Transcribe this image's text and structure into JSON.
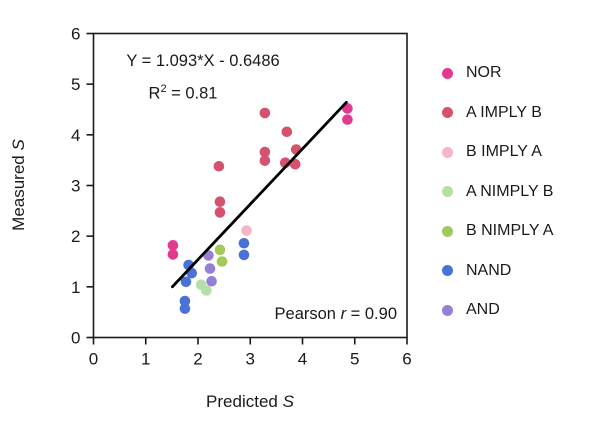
{
  "chart_data": {
    "type": "scatter",
    "xlabel_prefix": "Predicted ",
    "xlabel_symbol": "S",
    "ylabel_prefix": "Measured ",
    "ylabel_symbol": "S",
    "xlim": [
      0,
      6
    ],
    "ylim": [
      0,
      6
    ],
    "xticks": [
      0,
      1,
      2,
      3,
      4,
      5,
      6
    ],
    "yticks": [
      0,
      1,
      2,
      3,
      4,
      5,
      6
    ],
    "grid": false,
    "legend_position": "right",
    "annotations": {
      "equation": "Y = 1.093*X - 0.6486",
      "r_squared_prefix": "R",
      "r_squared_sup": "2",
      "r_squared_value": " = 0.81",
      "pearson_prefix": "Pearson ",
      "pearson_symbol": "r",
      "pearson_value": " = 0.90"
    },
    "fit_line": {
      "slope": 1.093,
      "intercept": -0.6486,
      "x_start": 1.51,
      "x_end": 4.84,
      "color": "#000000"
    },
    "axis_color": "#1a1a1a",
    "series": [
      {
        "name": "NOR",
        "color": "#e13a90",
        "points": [
          [
            1.52,
            1.82
          ],
          [
            1.52,
            1.64
          ],
          [
            4.86,
            4.52
          ],
          [
            4.86,
            4.3
          ]
        ]
      },
      {
        "name": "A IMPLY B",
        "color": "#d5526e",
        "points": [
          [
            2.4,
            3.38
          ],
          [
            2.42,
            2.68
          ],
          [
            2.42,
            2.47
          ],
          [
            3.28,
            4.43
          ],
          [
            3.28,
            3.66
          ],
          [
            3.28,
            3.49
          ],
          [
            3.7,
            4.06
          ],
          [
            3.67,
            3.45
          ],
          [
            3.88,
            3.71
          ],
          [
            3.86,
            3.42
          ]
        ]
      },
      {
        "name": "B IMPLY A",
        "color": "#f6b6c6",
        "points": [
          [
            2.93,
            2.11
          ]
        ]
      },
      {
        "name": "A NIMPLY B",
        "color": "#b3dfa8",
        "points": [
          [
            2.06,
            1.04
          ],
          [
            2.16,
            0.93
          ]
        ]
      },
      {
        "name": "B NIMPLY A",
        "color": "#a3c95c",
        "points": [
          [
            2.42,
            1.73
          ],
          [
            2.46,
            1.5
          ]
        ]
      },
      {
        "name": "NAND",
        "color": "#4a72d6",
        "points": [
          [
            1.82,
            1.43
          ],
          [
            1.88,
            1.27
          ],
          [
            1.77,
            1.1
          ],
          [
            1.75,
            0.72
          ],
          [
            1.75,
            0.57
          ],
          [
            2.88,
            1.86
          ],
          [
            2.88,
            1.63
          ]
        ]
      },
      {
        "name": "AND",
        "color": "#9680d6",
        "points": [
          [
            2.2,
            1.62
          ],
          [
            2.23,
            1.36
          ],
          [
            2.26,
            1.11
          ]
        ]
      }
    ]
  }
}
